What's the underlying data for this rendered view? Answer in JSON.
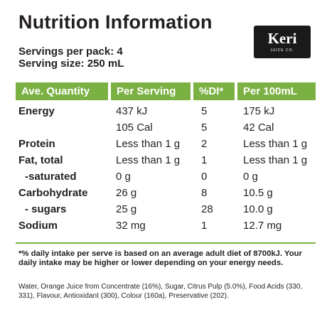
{
  "title": "Nutrition Information",
  "brand": {
    "logo_word": "Keri",
    "logo_sub": "JUICE CO."
  },
  "servings_per_pack": "Servings per pack: 4",
  "serving_size": "Serving size: 250 mL",
  "columns": [
    "Ave. Quantity",
    "Per Serving",
    "%DI*",
    "Per 100mL"
  ],
  "rows": [
    {
      "name": "Energy",
      "per_serving": "437 kJ",
      "di": "5",
      "per_100ml": "175 kJ"
    },
    {
      "name": "",
      "per_serving": "105 Cal",
      "di": "5",
      "per_100ml": "42 Cal"
    },
    {
      "name": "Protein",
      "per_serving": "Less than 1 g",
      "di": "2",
      "per_100ml": "Less than 1 g"
    },
    {
      "name": "Fat, total",
      "per_serving": "Less than 1 g",
      "di": "1",
      "per_100ml": "Less than 1 g"
    },
    {
      "name": "-saturated",
      "per_serving": "0 g",
      "di": "0",
      "per_100ml": "0 g"
    },
    {
      "name": "Carbohydrate",
      "per_serving": "26 g",
      "di": "8",
      "per_100ml": "10.5 g"
    },
    {
      "name": "- sugars",
      "per_serving": "25 g",
      "di": "28",
      "per_100ml": "10.0 g"
    },
    {
      "name": "Sodium",
      "per_serving": "32 mg",
      "di": "1",
      "per_100ml": "12.7 mg"
    }
  ],
  "footnote": "*% daily intake per serve is based on an average adult diet of 8700kJ. Your daily intake may be higher or lower depending on your energy needs.",
  "ingredients": "Water, Orange Juice from Concentrate (16%), Sugar, Citrus Pulp (5.0%), Food Acids (330, 331), Flavour, Antioxidant (300), Colour (160a), Preservative (202).",
  "colors": {
    "accent_green": "#7bb143",
    "text": "#231f20",
    "logo_bg": "#1a1a1a"
  }
}
